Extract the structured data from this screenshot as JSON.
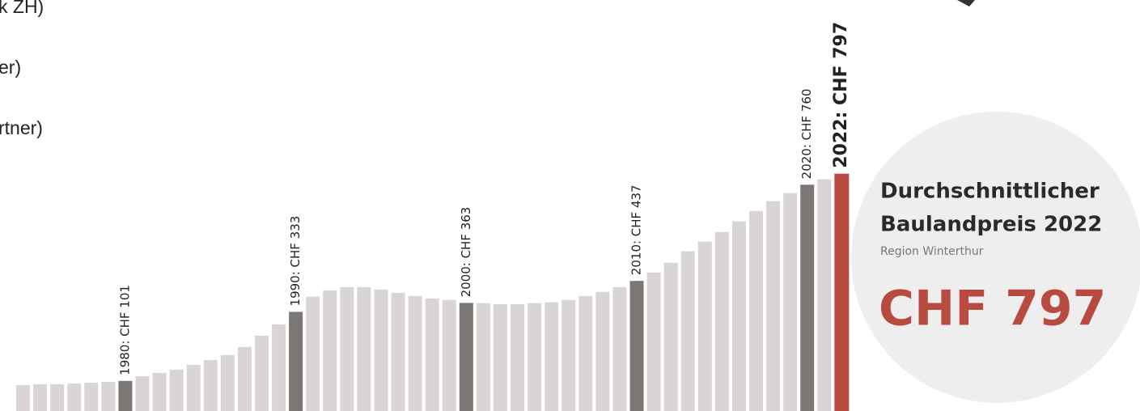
{
  "chart_data": {
    "type": "bar",
    "title_lines": [
      "Durchschnittlicher",
      "Baulandpreis 2022"
    ],
    "subtitle": "Region Winterthur",
    "headline": "CHF 797",
    "side_fragments": [
      "k ZH)",
      "er)",
      "rtner)"
    ],
    "values": [
      87,
      90,
      90,
      92,
      95,
      98,
      101,
      117,
      128,
      139,
      155,
      171,
      188,
      215,
      253,
      291,
      333,
      384,
      405,
      416,
      416,
      408,
      397,
      386,
      378,
      373,
      363,
      362,
      359,
      359,
      362,
      365,
      373,
      386,
      400,
      416,
      437,
      465,
      498,
      536,
      569,
      601,
      637,
      672,
      705,
      732,
      760,
      778,
      797
    ],
    "value_labels": [
      null,
      null,
      null,
      null,
      null,
      null,
      "1980: CHF 101",
      null,
      null,
      null,
      null,
      null,
      null,
      null,
      null,
      null,
      "1990: CHF 333",
      null,
      null,
      null,
      null,
      null,
      null,
      null,
      null,
      null,
      "2000: CHF 363",
      null,
      null,
      null,
      null,
      null,
      null,
      null,
      null,
      null,
      "2010: CHF 437",
      null,
      null,
      null,
      null,
      null,
      null,
      null,
      null,
      null,
      "2020: CHF 760",
      null,
      "2022: CHF 797"
    ],
    "color": "#d8d5d4",
    "highlight_color": "#7b7775",
    "last_color": "#b84a40",
    "ylim": [
      0,
      1000
    ]
  }
}
